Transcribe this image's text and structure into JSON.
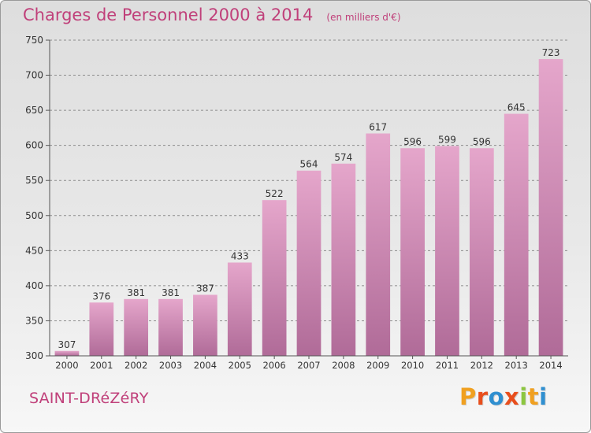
{
  "header": {
    "title": "Charges de Personnel 2000 à 2014",
    "subtitle": "(en milliers d'€)"
  },
  "footer": {
    "city": "SAINT-DRéZéRY",
    "brand": "Proxiti"
  },
  "colors": {
    "title": "#c0407a",
    "bar_top": "#e5a6cb",
    "bar_bottom": "#b06b98",
    "grid": "#8c8c8c",
    "brand_letters": [
      "#f0a020",
      "#e84e1c",
      "#2f8fd0",
      "#e84e1c",
      "#8cc63f",
      "#f0a020",
      "#2f8fd0"
    ]
  },
  "chart_data": {
    "type": "bar",
    "title": "Charges de Personnel 2000 à 2014",
    "subtitle": "(en milliers d'€)",
    "xlabel": "",
    "ylabel": "",
    "categories": [
      "2000",
      "2001",
      "2002",
      "2003",
      "2004",
      "2005",
      "2006",
      "2007",
      "2008",
      "2009",
      "2010",
      "2011",
      "2012",
      "2013",
      "2014"
    ],
    "values": [
      307,
      376,
      381,
      381,
      387,
      433,
      522,
      564,
      574,
      617,
      596,
      599,
      596,
      645,
      723
    ],
    "ylim": [
      300,
      750
    ],
    "yticks": [
      300,
      350,
      400,
      450,
      500,
      550,
      600,
      650,
      700,
      750
    ],
    "grid": true,
    "grid_style": "dashed horizontal"
  }
}
